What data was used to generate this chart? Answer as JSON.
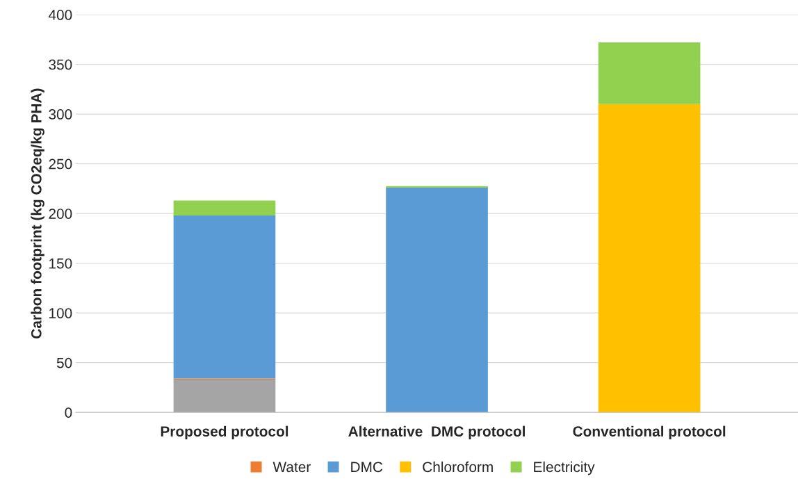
{
  "chart_data": {
    "type": "bar",
    "stacked": true,
    "ylabel": "Carbon footprint (kg CO2eq/kg PHA)",
    "categories": [
      "Proposed protocol",
      "Alternative  DMC protocol",
      "Conventional protocol"
    ],
    "series": [
      {
        "color": "#a5a5a5",
        "values": [
          33,
          null,
          null
        ]
      },
      {
        "name": "Water",
        "color": "#ed7d31",
        "values": [
          1,
          null,
          null
        ]
      },
      {
        "name": "DMC",
        "color": "#5b9bd5",
        "values": [
          164,
          226,
          null
        ]
      },
      {
        "name": "Chloroform",
        "color": "#ffc000",
        "values": [
          null,
          null,
          310
        ]
      },
      {
        "name": "Electricity",
        "color": "#92d050",
        "values": [
          15,
          1.5,
          62
        ]
      }
    ],
    "ylim": [
      0,
      400
    ],
    "yticks": [
      0,
      50,
      100,
      150,
      200,
      250,
      300,
      350,
      400
    ],
    "grid": "y",
    "legend": "bottom"
  }
}
